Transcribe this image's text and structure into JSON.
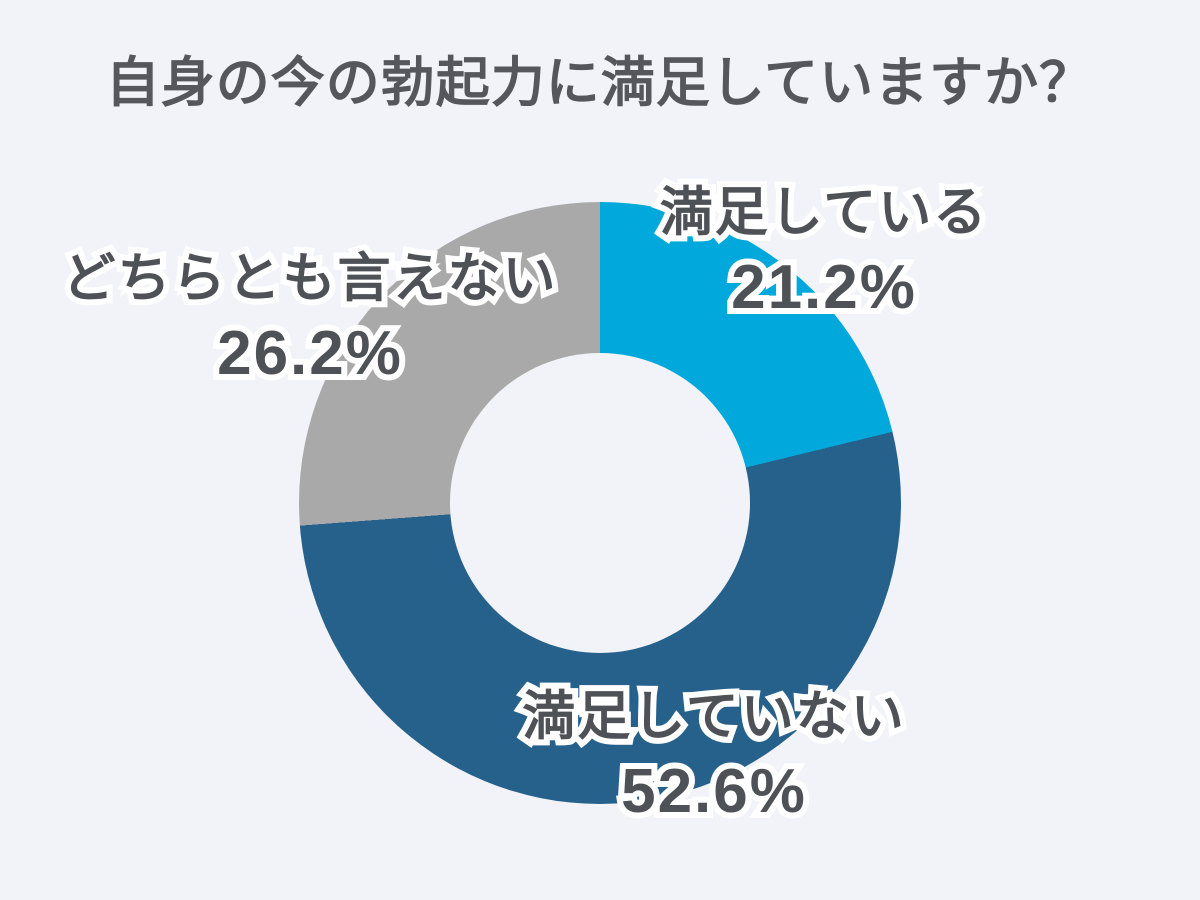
{
  "page": {
    "background_color": "#f1f3f8"
  },
  "title": {
    "text": "自身の今の勃起力に満足していますか？",
    "color": "#55575c"
  },
  "chart_data": {
    "type": "pie",
    "subtype": "donut",
    "start_angle_deg": 0,
    "direction": "clockwise",
    "inner_radius_ratio": 0.5,
    "legend_position": "none",
    "labels_on_chart": true,
    "label_text_color": "#4e5156",
    "label_outline_color": "#ffffff",
    "segments": [
      {
        "label": "満足している",
        "value_pct": 21.2,
        "value_label": "21.2%",
        "color": "#00a8db"
      },
      {
        "label": "満足していない",
        "value_pct": 52.6,
        "value_label": "52.6%",
        "color": "#26618c"
      },
      {
        "label": "どちらとも言えない",
        "value_pct": 26.2,
        "value_label": "26.2%",
        "color": "#a9a9a9"
      }
    ]
  }
}
